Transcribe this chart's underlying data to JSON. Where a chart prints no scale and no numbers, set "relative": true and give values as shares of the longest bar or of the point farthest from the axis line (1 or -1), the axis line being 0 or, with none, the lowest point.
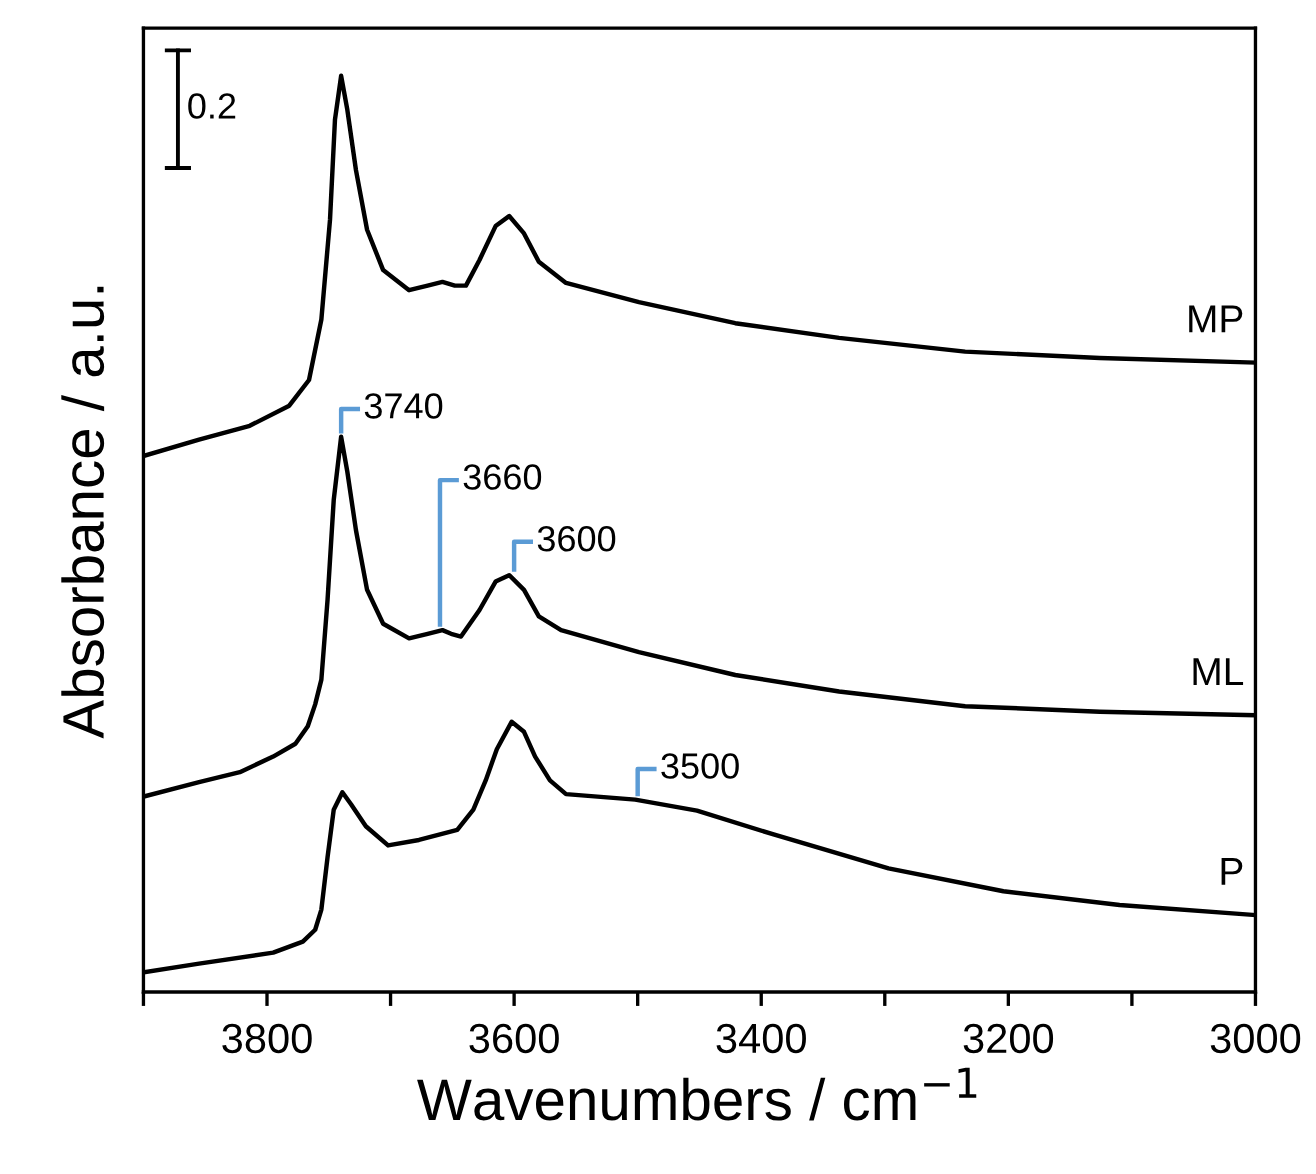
{
  "chart_data": {
    "type": "line",
    "relative": true,
    "xlabel": "Wavenumbers / cm$^{−1}$",
    "ylabel": "Absorbance / a.u.",
    "xlim": [
      3900,
      3000
    ],
    "xticks": [
      {
        "value": 3900,
        "label": null
      },
      3800,
      {
        "value": 3700,
        "label": null
      },
      3600,
      {
        "value": 3500,
        "label": null
      },
      3400,
      {
        "value": 3300,
        "label": null
      },
      3200,
      {
        "value": 3100,
        "label": null
      },
      3000
    ],
    "grid": false,
    "legend": false,
    "marker": "none",
    "line_style": "solid",
    "series": [
      {
        "name": "MP",
        "color": "#000000",
        "x": [
          3900,
          3855,
          3814,
          3782,
          3766,
          3756,
          3749,
          3745,
          3740,
          3735,
          3728,
          3719,
          3706,
          3685,
          3670,
          3658,
          3648,
          3639,
          3628,
          3615,
          3604,
          3592,
          3580,
          3558,
          3499,
          3421,
          3337,
          3235,
          3126,
          3000
        ],
        "values": [
          0.585,
          0.603,
          0.618,
          0.64,
          0.668,
          0.734,
          0.843,
          0.952,
          1.0,
          0.963,
          0.897,
          0.832,
          0.788,
          0.766,
          0.771,
          0.775,
          0.771,
          0.771,
          0.799,
          0.836,
          0.847,
          0.828,
          0.797,
          0.774,
          0.753,
          0.73,
          0.714,
          0.699,
          0.692,
          0.687
        ]
      },
      {
        "name": "ML",
        "color": "#000000",
        "x": [
          3898,
          3855,
          3822,
          3795,
          3777,
          3767,
          3761,
          3756,
          3751,
          3746,
          3740,
          3735,
          3728,
          3719,
          3706,
          3685,
          3670,
          3658,
          3651,
          3643,
          3628,
          3615,
          3604,
          3592,
          3580,
          3562,
          3499,
          3421,
          3337,
          3235,
          3126,
          3000
        ],
        "values": [
          0.214,
          0.229,
          0.24,
          0.257,
          0.271,
          0.29,
          0.314,
          0.341,
          0.428,
          0.537,
          0.606,
          0.568,
          0.504,
          0.439,
          0.402,
          0.386,
          0.391,
          0.395,
          0.391,
          0.388,
          0.417,
          0.448,
          0.455,
          0.439,
          0.41,
          0.395,
          0.371,
          0.346,
          0.328,
          0.312,
          0.306,
          0.302
        ]
      },
      {
        "name": "P",
        "color": "#000000",
        "x": [
          3898,
          3855,
          3795,
          3771,
          3761,
          3756,
          3751,
          3746,
          3739,
          3732,
          3720,
          3702,
          3677,
          3646,
          3633,
          3623,
          3614,
          3602,
          3592,
          3583,
          3571,
          3558,
          3502,
          3452,
          3390,
          3297,
          3204,
          3110,
          3000
        ],
        "values": [
          0.022,
          0.031,
          0.043,
          0.055,
          0.068,
          0.09,
          0.147,
          0.199,
          0.218,
          0.205,
          0.181,
          0.16,
          0.166,
          0.177,
          0.199,
          0.231,
          0.265,
          0.295,
          0.284,
          0.257,
          0.231,
          0.216,
          0.21,
          0.198,
          0.172,
          0.135,
          0.11,
          0.095,
          0.084
        ]
      }
    ],
    "annotations": [
      {
        "text": "3740",
        "x": 3740,
        "y": 0.606
      },
      {
        "text": "3660",
        "x": 3660,
        "y": 0.395
      },
      {
        "text": "3600",
        "x": 3600,
        "y": 0.455
      },
      {
        "text": "3500",
        "x": 3500,
        "y": 0.21
      },
      "0.2"
    ]
  }
}
